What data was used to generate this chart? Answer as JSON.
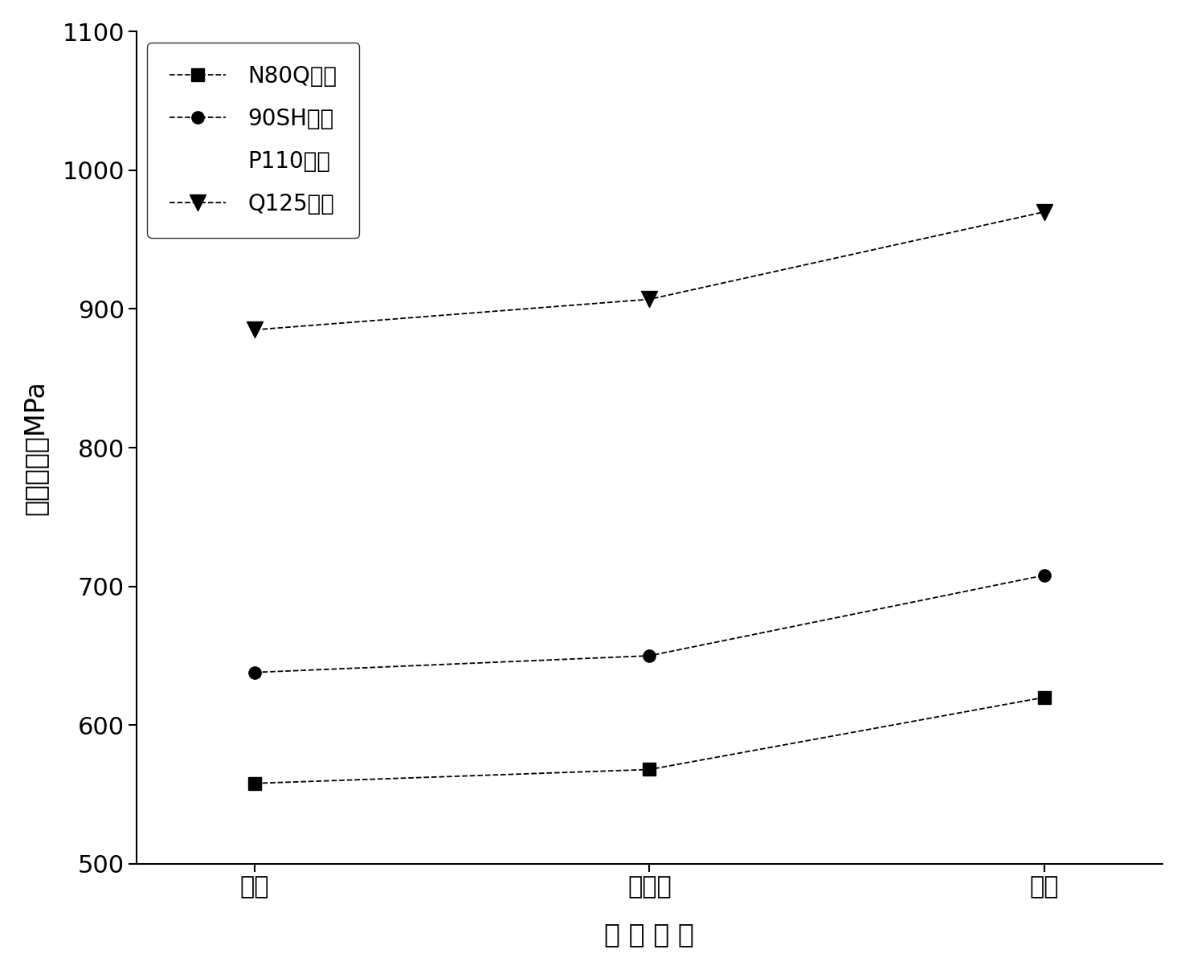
{
  "series": [
    {
      "label": "N80Q油管",
      "marker": "s",
      "values": [
        558,
        568,
        620
      ],
      "linestyle": "--",
      "markersize": 11,
      "color": "#000000"
    },
    {
      "label": "90SH套管",
      "marker": "o",
      "values": [
        638,
        650,
        708
      ],
      "linestyle": "--",
      "markersize": 11,
      "color": "#000000"
    },
    {
      "label": "P110套管",
      "marker": null,
      "values": null,
      "linestyle": "none",
      "markersize": 0,
      "color": "#000000"
    },
    {
      "label": "Q125套管",
      "marker": "v",
      "values": [
        885,
        907,
        970
      ],
      "linestyle": "--",
      "markersize": 14,
      "color": "#000000"
    }
  ],
  "x_positions": [
    0,
    1,
    2
  ],
  "x_labels": [
    "管体",
    "过渡区",
    "管端"
  ],
  "xlabel": "试 验 部 位",
  "ylabel": "屈服强度，MPa",
  "ylim": [
    500,
    1100
  ],
  "yticks": [
    500,
    600,
    700,
    800,
    900,
    1000,
    1100
  ],
  "background_color": "#ffffff",
  "tick_fontsize": 22,
  "label_fontsize": 24,
  "legend_fontsize": 20,
  "linewidth": 1.3
}
